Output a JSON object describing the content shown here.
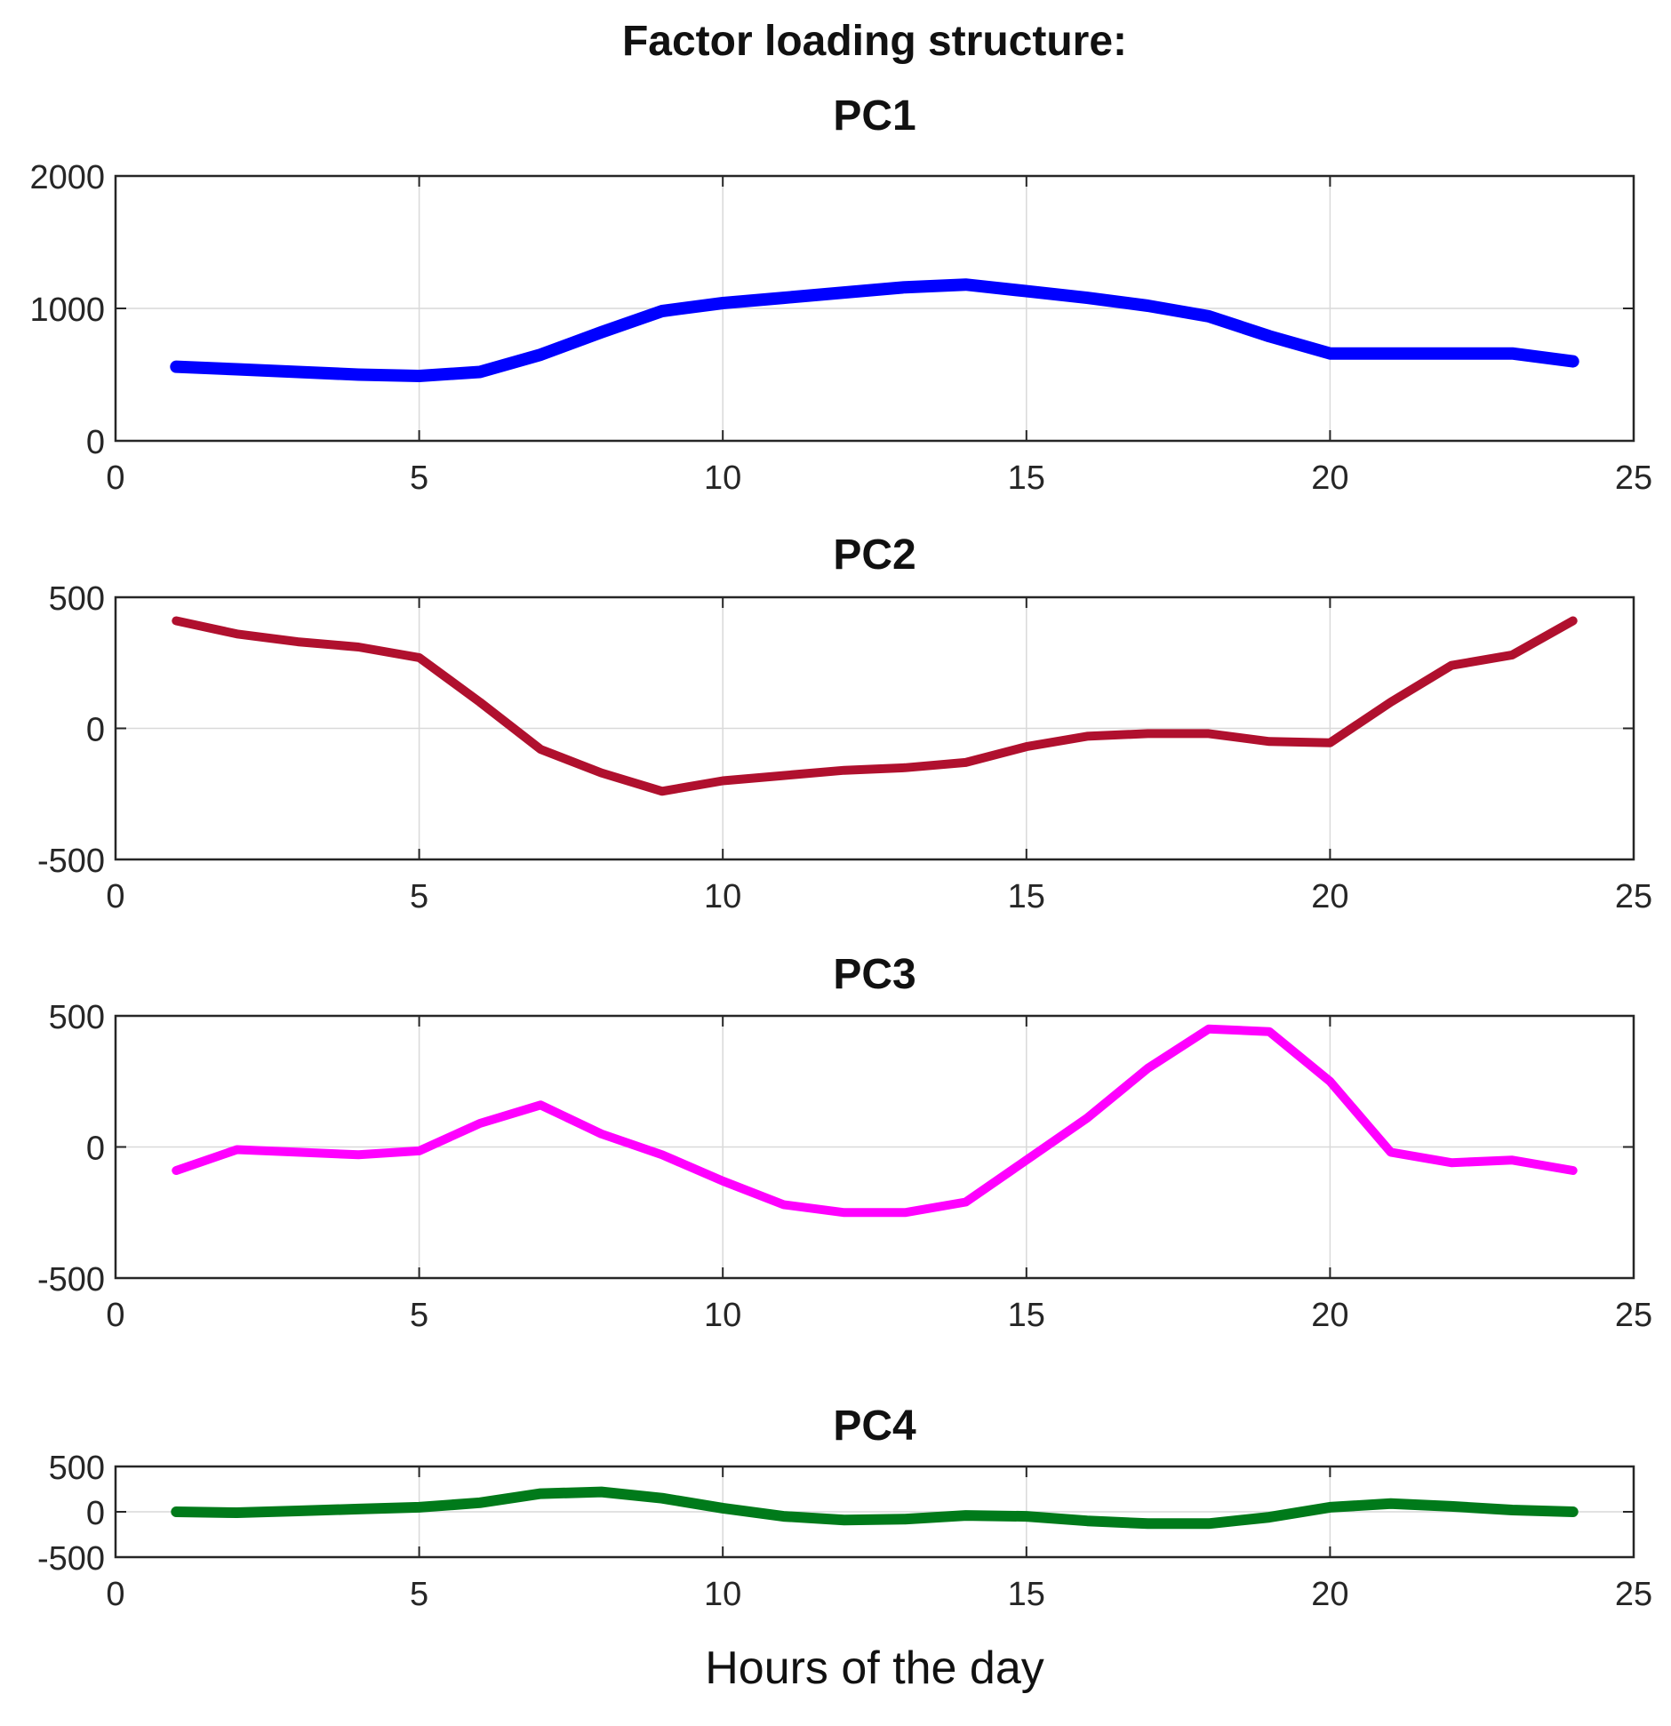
{
  "figure": {
    "suptitle": "Factor loading structure:"
  },
  "chart_data": [
    {
      "type": "line",
      "title": "PC1",
      "xlabel": "",
      "ylabel": "",
      "xlim": [
        0,
        25
      ],
      "ylim": [
        0,
        2000
      ],
      "xticks": [
        0,
        5,
        10,
        15,
        20,
        25
      ],
      "yticks": [
        0,
        1000,
        2000
      ],
      "grid": true,
      "series": [
        {
          "color": "#0000ff",
          "x": [
            1,
            2,
            3,
            4,
            5,
            6,
            7,
            8,
            9,
            10,
            11,
            12,
            13,
            14,
            15,
            16,
            17,
            18,
            19,
            20,
            21,
            22,
            23,
            24
          ],
          "y": [
            560,
            540,
            520,
            500,
            490,
            520,
            650,
            820,
            980,
            1040,
            1080,
            1120,
            1160,
            1180,
            1130,
            1080,
            1020,
            940,
            790,
            660,
            660,
            660,
            660,
            600
          ]
        }
      ]
    },
    {
      "type": "line",
      "title": "PC2",
      "xlabel": "",
      "ylabel": "",
      "xlim": [
        0,
        25
      ],
      "ylim": [
        -500,
        500
      ],
      "xticks": [
        0,
        5,
        10,
        15,
        20,
        25
      ],
      "yticks": [
        -500,
        0,
        500
      ],
      "grid": true,
      "series": [
        {
          "color": "#b0102e",
          "x": [
            1,
            2,
            3,
            4,
            5,
            6,
            7,
            8,
            9,
            10,
            11,
            12,
            13,
            14,
            15,
            16,
            17,
            18,
            19,
            20,
            21,
            22,
            23,
            24
          ],
          "y": [
            410,
            360,
            330,
            310,
            270,
            100,
            -80,
            -170,
            -240,
            -200,
            -180,
            -160,
            -150,
            -130,
            -70,
            -30,
            -20,
            -20,
            -50,
            -55,
            100,
            240,
            280,
            410
          ]
        }
      ]
    },
    {
      "type": "line",
      "title": "PC3",
      "xlabel": "",
      "ylabel": "",
      "xlim": [
        0,
        25
      ],
      "ylim": [
        -500,
        500
      ],
      "xticks": [
        0,
        5,
        10,
        15,
        20,
        25
      ],
      "yticks": [
        -500,
        0,
        500
      ],
      "grid": true,
      "series": [
        {
          "color": "#ff00ff",
          "x": [
            1,
            2,
            3,
            4,
            5,
            6,
            7,
            8,
            9,
            10,
            11,
            12,
            13,
            14,
            15,
            16,
            17,
            18,
            19,
            20,
            21,
            22,
            23,
            24
          ],
          "y": [
            -90,
            -10,
            -20,
            -30,
            -15,
            90,
            160,
            50,
            -30,
            -130,
            -220,
            -250,
            -250,
            -210,
            -50,
            110,
            300,
            450,
            440,
            250,
            -20,
            -60,
            -50,
            -90
          ]
        }
      ]
    },
    {
      "type": "line",
      "title": "PC4",
      "xlabel": "Hours of the day",
      "ylabel": "",
      "xlim": [
        0,
        25
      ],
      "ylim": [
        -500,
        500
      ],
      "xticks": [
        0,
        5,
        10,
        15,
        20,
        25
      ],
      "yticks": [
        -500,
        0,
        500
      ],
      "grid": true,
      "series": [
        {
          "color": "#007a1a",
          "x": [
            1,
            2,
            3,
            4,
            5,
            6,
            7,
            8,
            9,
            10,
            11,
            12,
            13,
            14,
            15,
            16,
            17,
            18,
            19,
            20,
            21,
            22,
            23,
            24
          ],
          "y": [
            0,
            -10,
            10,
            30,
            50,
            100,
            200,
            220,
            150,
            40,
            -50,
            -90,
            -80,
            -40,
            -50,
            -100,
            -130,
            -130,
            -60,
            50,
            90,
            60,
            20,
            0
          ]
        }
      ]
    }
  ]
}
